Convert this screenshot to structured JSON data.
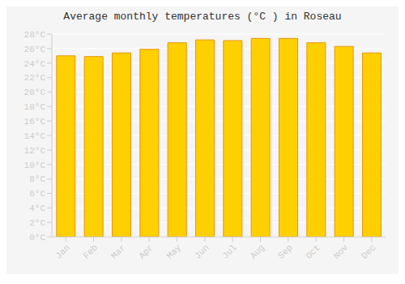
{
  "chart_data": {
    "type": "bar",
    "title": "Average monthly temperatures (°C ) in Roseau",
    "categories": [
      "Jan",
      "Feb",
      "Mar",
      "Apr",
      "May",
      "Jun",
      "Jul",
      "Aug",
      "Sep",
      "Oct",
      "Nov",
      "Dec"
    ],
    "values": [
      25.0,
      24.9,
      25.4,
      25.9,
      26.8,
      27.2,
      27.1,
      27.4,
      27.4,
      26.8,
      26.3,
      25.4
    ],
    "color": "#FFD000",
    "ylim": [
      0,
      28
    ],
    "yticks": [
      {
        "value": 0,
        "label": "0°C"
      },
      {
        "value": 2,
        "label": "2°C"
      },
      {
        "value": 4,
        "label": "4°C"
      },
      {
        "value": 6,
        "label": "6°C"
      },
      {
        "value": 8,
        "label": "8°C"
      },
      {
        "value": 10,
        "label": "10°C"
      },
      {
        "value": 12,
        "label": "12°C"
      },
      {
        "value": 14,
        "label": "14°C"
      },
      {
        "value": 16,
        "label": "16°C"
      },
      {
        "value": 18,
        "label": "18°C"
      },
      {
        "value": 20,
        "label": "20°C"
      },
      {
        "value": 22,
        "label": "22°C"
      },
      {
        "value": 24,
        "label": "24°C"
      },
      {
        "value": 26,
        "label": "26°C"
      },
      {
        "value": 28,
        "label": "28°C"
      }
    ],
    "grid": true
  }
}
